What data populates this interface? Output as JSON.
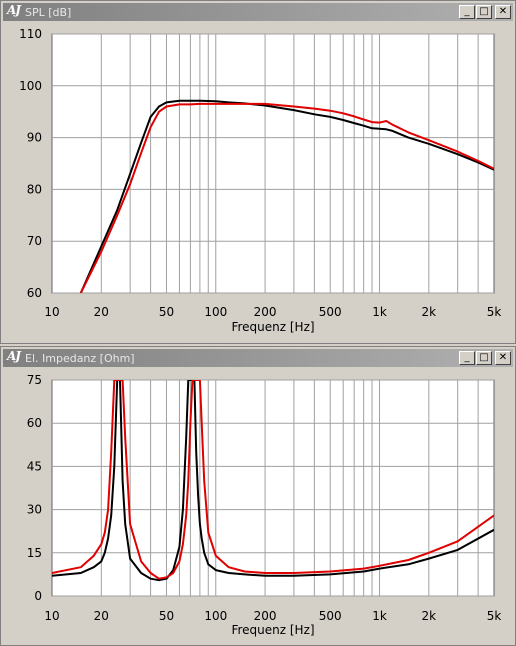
{
  "windows": [
    {
      "title": "SPL [dB]",
      "logo": "AJ",
      "buttons": [
        "minimize-icon",
        "maximize-icon",
        "close-icon"
      ]
    },
    {
      "title": "El. Impedanz [Ohm]",
      "logo": "AJ",
      "buttons": [
        "minimize-icon",
        "maximize-icon",
        "close-icon"
      ]
    }
  ],
  "colors": {
    "series_red": "#e00000",
    "series_black": "#000000",
    "grid": "#a0a0a0",
    "plot_bg": "#ffffff"
  },
  "chart_data": [
    {
      "type": "line",
      "title": "SPL [dB]",
      "xlabel": "Frequenz [Hz]",
      "ylabel": "",
      "xscale": "log",
      "xlim": [
        10,
        5000
      ],
      "ylim": [
        60,
        110
      ],
      "grid": true,
      "x_tick_labels": [
        "10",
        "20",
        "50",
        "100",
        "200",
        "500",
        "1k",
        "2k",
        "5k"
      ],
      "x_ticks": [
        10,
        20,
        50,
        100,
        200,
        500,
        1000,
        2000,
        5000
      ],
      "y_ticks": [
        60,
        70,
        80,
        90,
        100,
        110
      ],
      "series": [
        {
          "color": "#000000",
          "x": [
            15,
            20,
            25,
            30,
            35,
            40,
            45,
            50,
            60,
            70,
            80,
            100,
            120,
            150,
            200,
            300,
            400,
            500,
            600,
            700,
            800,
            900,
            1000,
            1100,
            1200,
            1500,
            2000,
            3000,
            4000,
            5000
          ],
          "y": [
            60,
            69,
            76,
            83,
            89,
            94,
            96,
            96.8,
            97.1,
            97.1,
            97.1,
            97,
            96.8,
            96.6,
            96.2,
            95.3,
            94.5,
            94,
            93.4,
            92.8,
            92.3,
            91.8,
            91.7,
            91.6,
            91.3,
            90,
            88.8,
            86.8,
            85.2,
            83.8
          ]
        },
        {
          "color": "#e00000",
          "x": [
            15,
            20,
            25,
            30,
            35,
            40,
            45,
            50,
            60,
            70,
            80,
            100,
            120,
            150,
            200,
            300,
            400,
            500,
            600,
            700,
            800,
            900,
            1000,
            1100,
            1200,
            1500,
            2000,
            3000,
            4000,
            5000
          ],
          "y": [
            60,
            68,
            75,
            81,
            87,
            92,
            95,
            96,
            96.4,
            96.4,
            96.5,
            96.5,
            96.5,
            96.5,
            96.5,
            96,
            95.6,
            95.2,
            94.7,
            94.1,
            93.5,
            93,
            92.9,
            93.2,
            92.5,
            91,
            89.5,
            87.3,
            85.5,
            84
          ]
        }
      ]
    },
    {
      "type": "line",
      "title": "El. Impedanz [Ohm]",
      "xlabel": "Frequenz [Hz]",
      "ylabel": "",
      "xscale": "log",
      "xlim": [
        10,
        5000
      ],
      "ylim": [
        0,
        75
      ],
      "grid": true,
      "x_tick_labels": [
        "10",
        "20",
        "50",
        "100",
        "200",
        "500",
        "1k",
        "2k",
        "5k"
      ],
      "x_ticks": [
        10,
        20,
        50,
        100,
        200,
        500,
        1000,
        2000,
        5000
      ],
      "y_ticks": [
        0,
        15,
        30,
        45,
        60,
        75
      ],
      "series": [
        {
          "color": "#000000",
          "x": [
            10,
            15,
            18,
            20,
            21,
            22,
            23,
            24,
            25,
            26,
            27,
            28,
            30,
            35,
            40,
            45,
            50,
            55,
            60,
            63,
            66,
            68,
            70,
            72,
            74,
            76,
            78,
            80,
            82,
            85,
            90,
            100,
            120,
            150,
            200,
            300,
            500,
            800,
            1000,
            1500,
            2000,
            3000,
            5000
          ],
          "y": [
            7,
            8,
            10,
            12,
            15,
            20,
            28,
            45,
            75,
            75,
            40,
            25,
            13,
            8,
            6,
            5.5,
            6,
            9,
            17,
            30,
            55,
            75,
            75,
            75,
            75,
            50,
            35,
            25,
            20,
            15,
            11,
            9,
            8,
            7.5,
            7,
            7,
            7.5,
            8.5,
            9.5,
            11,
            13,
            16,
            23
          ]
        },
        {
          "color": "#e00000",
          "x": [
            10,
            15,
            18,
            20,
            21,
            22,
            23,
            24,
            25,
            26,
            27,
            28,
            30,
            35,
            40,
            45,
            50,
            55,
            60,
            63,
            66,
            68,
            70,
            72,
            74,
            76,
            78,
            80,
            82,
            85,
            90,
            100,
            120,
            150,
            200,
            300,
            500,
            800,
            1000,
            1500,
            2000,
            3000,
            5000
          ],
          "y": [
            8,
            10,
            14,
            18,
            22,
            30,
            50,
            75,
            75,
            75,
            75,
            55,
            25,
            12,
            8,
            6,
            6.5,
            8,
            12,
            18,
            28,
            40,
            60,
            75,
            75,
            75,
            75,
            75,
            60,
            40,
            22,
            14,
            10,
            8.5,
            8,
            8,
            8.5,
            9.5,
            10.5,
            12.5,
            15,
            19,
            28
          ]
        }
      ]
    }
  ]
}
